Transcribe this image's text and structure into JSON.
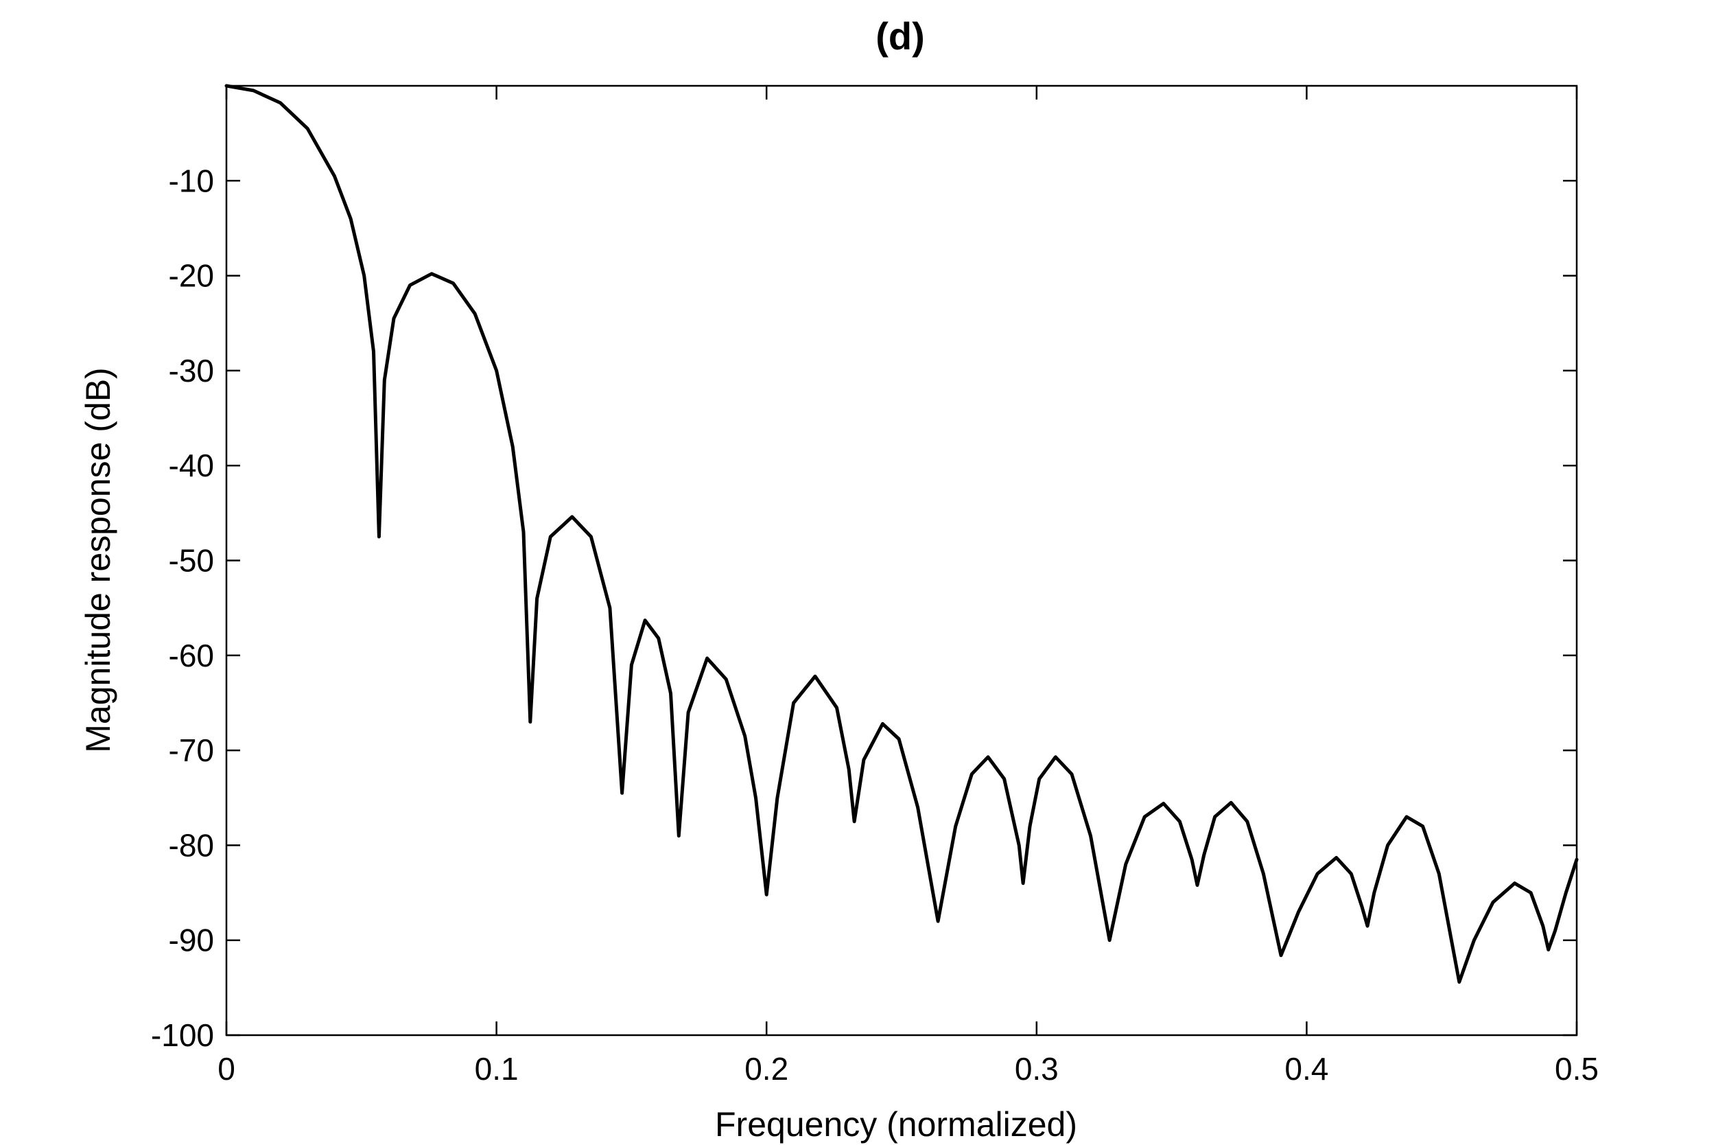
{
  "chart_data": {
    "type": "line",
    "title": "(d)",
    "xlabel": "Frequency (normalized)",
    "ylabel": "Magnitude response (dB)",
    "xlim": [
      0,
      0.5
    ],
    "ylim": [
      -100,
      0
    ],
    "xticks": [
      0,
      0.1,
      0.2,
      0.3,
      0.4,
      0.5
    ],
    "xtick_labels": [
      "0",
      "0.1",
      "0.2",
      "0.3",
      "0.4",
      "0.5"
    ],
    "yticks": [
      -10,
      -20,
      -30,
      -40,
      -50,
      -60,
      -70,
      -80,
      -90,
      -100
    ],
    "ytick_labels": [
      "-10",
      "-20",
      "-30",
      "-40",
      "-50",
      "-60",
      "-70",
      "-80",
      "-90",
      "-100"
    ],
    "grid": false,
    "line_color": "#000000",
    "series": [
      {
        "points": [
          [
            0,
            0
          ],
          [
            0.01,
            -0.5
          ],
          [
            0.02,
            -1.8
          ],
          [
            0.03,
            -4.5
          ],
          [
            0.04,
            -9.5
          ],
          [
            0.046,
            -14
          ],
          [
            0.051,
            -20
          ],
          [
            0.0545,
            -28
          ],
          [
            0.0565,
            -47.5
          ],
          [
            0.0585,
            -31
          ],
          [
            0.062,
            -24.5
          ],
          [
            0.068,
            -21
          ],
          [
            0.076,
            -19.8
          ],
          [
            0.084,
            -20.8
          ],
          [
            0.092,
            -24
          ],
          [
            0.1,
            -30
          ],
          [
            0.106,
            -38
          ],
          [
            0.11,
            -47
          ],
          [
            0.1125,
            -67
          ],
          [
            0.115,
            -54
          ],
          [
            0.12,
            -47.5
          ],
          [
            0.128,
            -45.4
          ],
          [
            0.135,
            -47.5
          ],
          [
            0.142,
            -55
          ],
          [
            0.1465,
            -74.5
          ],
          [
            0.15,
            -61
          ],
          [
            0.155,
            -56.3
          ],
          [
            0.16,
            -58.2
          ],
          [
            0.1645,
            -64
          ],
          [
            0.1675,
            -79
          ],
          [
            0.171,
            -66
          ],
          [
            0.178,
            -60.3
          ],
          [
            0.185,
            -62.5
          ],
          [
            0.192,
            -68.5
          ],
          [
            0.196,
            -75
          ],
          [
            0.2,
            -85.2
          ],
          [
            0.204,
            -75
          ],
          [
            0.21,
            -65
          ],
          [
            0.218,
            -62.2
          ],
          [
            0.226,
            -65.5
          ],
          [
            0.2305,
            -72
          ],
          [
            0.2325,
            -77.5
          ],
          [
            0.236,
            -71
          ],
          [
            0.243,
            -67.2
          ],
          [
            0.249,
            -68.8
          ],
          [
            0.256,
            -76
          ],
          [
            0.2635,
            -88
          ],
          [
            0.27,
            -78
          ],
          [
            0.276,
            -72.5
          ],
          [
            0.282,
            -70.7
          ],
          [
            0.288,
            -73
          ],
          [
            0.2935,
            -80
          ],
          [
            0.295,
            -84
          ],
          [
            0.2975,
            -78
          ],
          [
            0.301,
            -73
          ],
          [
            0.307,
            -70.7
          ],
          [
            0.313,
            -72.5
          ],
          [
            0.32,
            -79
          ],
          [
            0.327,
            -90
          ],
          [
            0.333,
            -82
          ],
          [
            0.34,
            -77
          ],
          [
            0.347,
            -75.6
          ],
          [
            0.353,
            -77.5
          ],
          [
            0.3575,
            -81.5
          ],
          [
            0.3595,
            -84.2
          ],
          [
            0.362,
            -81
          ],
          [
            0.366,
            -77
          ],
          [
            0.372,
            -75.5
          ],
          [
            0.378,
            -77.5
          ],
          [
            0.384,
            -83
          ],
          [
            0.3905,
            -91.6
          ],
          [
            0.397,
            -87
          ],
          [
            0.404,
            -83
          ],
          [
            0.411,
            -81.3
          ],
          [
            0.4165,
            -83
          ],
          [
            0.4205,
            -86.5
          ],
          [
            0.4225,
            -88.5
          ],
          [
            0.425,
            -85
          ],
          [
            0.43,
            -80
          ],
          [
            0.437,
            -77
          ],
          [
            0.443,
            -78
          ],
          [
            0.449,
            -83
          ],
          [
            0.4565,
            -94.4
          ],
          [
            0.462,
            -90
          ],
          [
            0.469,
            -86
          ],
          [
            0.477,
            -84
          ],
          [
            0.483,
            -85
          ],
          [
            0.4875,
            -88.5
          ],
          [
            0.4895,
            -91
          ],
          [
            0.492,
            -89
          ],
          [
            0.496,
            -85
          ],
          [
            0.5,
            -81.5
          ]
        ]
      }
    ]
  }
}
